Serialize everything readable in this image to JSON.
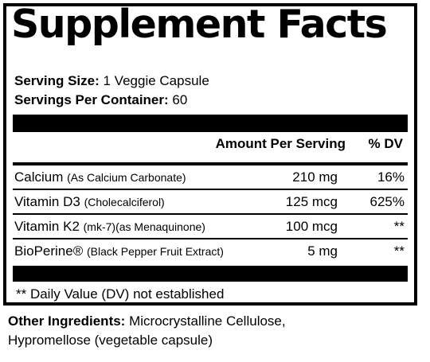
{
  "title": "Supplement Facts",
  "serving_size": {
    "label": "Serving Size:",
    "value": "1 Veggie Capsule"
  },
  "servings_per_container": {
    "label": "Servings Per Container:",
    "value": "60"
  },
  "table": {
    "header_amount": "Amount Per Serving",
    "header_dv": "% DV",
    "rows": [
      {
        "name": "Calcium",
        "detail": "(As Calcium Carbonate)",
        "amount": "210 mg",
        "dv": "16%"
      },
      {
        "name": "Vitamin D3",
        "detail": "(Cholecalciferol)",
        "amount": "125 mcg",
        "dv": "625%"
      },
      {
        "name": "Vitamin K2",
        "detail": "(mk-7)(as Menaquinone)",
        "amount": "100 mcg",
        "dv": "**"
      },
      {
        "name": "BioPerine®",
        "detail": "(Black Pepper Fruit Extract)",
        "amount": "5 mg",
        "dv": "**"
      }
    ]
  },
  "footnote": "** Daily Value (DV) not established",
  "other_ingredients": {
    "label": "Other Ingredients:",
    "line1": "Microcrystalline Cellulose,",
    "line2": "Hypromellose (vegetable capsule)"
  }
}
